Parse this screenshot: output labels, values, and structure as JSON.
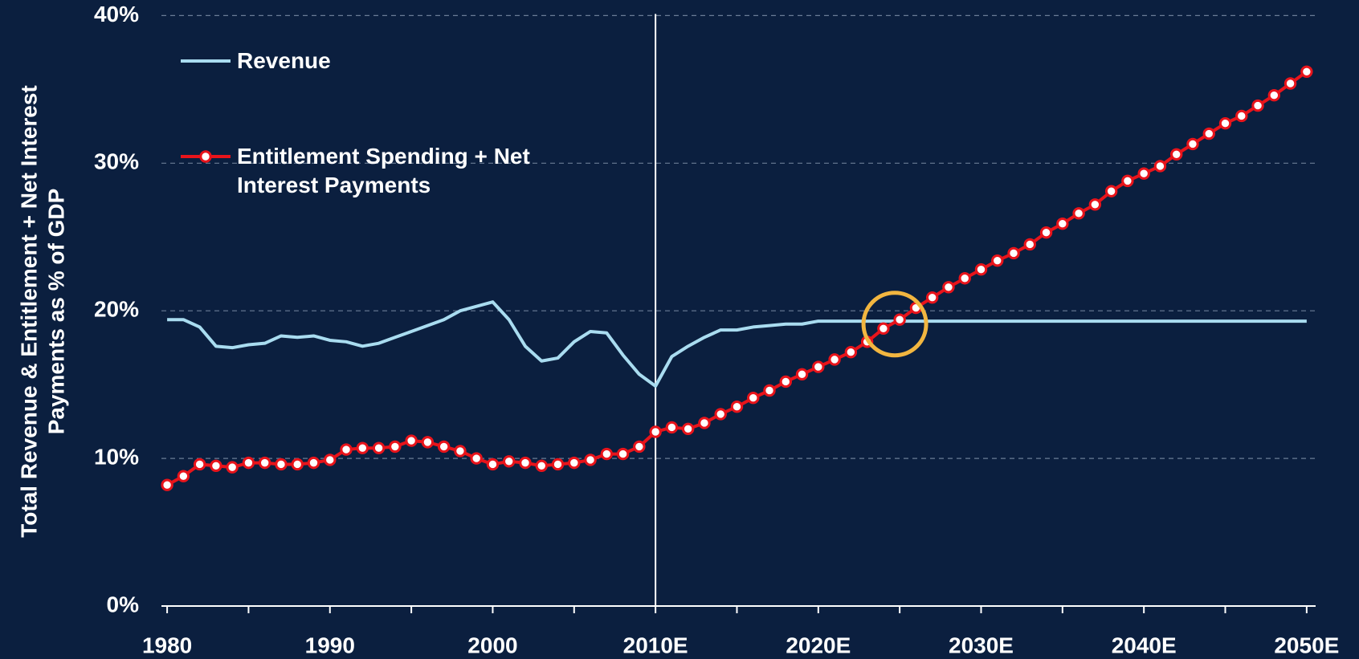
{
  "chart_data": {
    "type": "line",
    "y_label": [
      "Total Revenue & Entitlement + Net Interest",
      "Payments as % of GDP"
    ],
    "x": [
      1980,
      1981,
      1982,
      1983,
      1984,
      1985,
      1986,
      1987,
      1988,
      1989,
      1990,
      1991,
      1992,
      1993,
      1994,
      1995,
      1996,
      1997,
      1998,
      1999,
      2000,
      2001,
      2002,
      2003,
      2004,
      2005,
      2006,
      2007,
      2008,
      2009,
      2010,
      2011,
      2012,
      2013,
      2014,
      2015,
      2016,
      2017,
      2018,
      2019,
      2020,
      2021,
      2022,
      2023,
      2024,
      2025,
      2026,
      2027,
      2028,
      2029,
      2030,
      2031,
      2032,
      2033,
      2034,
      2035,
      2036,
      2037,
      2038,
      2039,
      2040,
      2041,
      2042,
      2043,
      2044,
      2045,
      2046,
      2047,
      2048,
      2049,
      2050
    ],
    "series": [
      {
        "name": "Revenue",
        "color": "#a9dcf0",
        "markers": false,
        "values": [
          19.4,
          19.4,
          18.9,
          17.6,
          17.5,
          17.7,
          17.8,
          18.3,
          18.2,
          18.3,
          18.0,
          17.9,
          17.6,
          17.8,
          18.2,
          18.6,
          19.0,
          19.4,
          20.0,
          20.3,
          20.6,
          19.4,
          17.6,
          16.6,
          16.8,
          17.9,
          18.6,
          18.5,
          17.0,
          15.7,
          14.9,
          16.9,
          17.6,
          18.2,
          18.7,
          18.7,
          18.9,
          19.0,
          19.1,
          19.1,
          19.3,
          19.3,
          19.3,
          19.3,
          19.3,
          19.3,
          19.3,
          19.3,
          19.3,
          19.3,
          19.3,
          19.3,
          19.3,
          19.3,
          19.3,
          19.3,
          19.3,
          19.3,
          19.3,
          19.3,
          19.3,
          19.3,
          19.3,
          19.3,
          19.3,
          19.3,
          19.3,
          19.3,
          19.3,
          19.3,
          19.3
        ]
      },
      {
        "name": "Entitlement Spending + Net Interest Payments",
        "color": "#e8141b",
        "markers": true,
        "values": [
          8.2,
          8.8,
          9.6,
          9.5,
          9.4,
          9.7,
          9.7,
          9.6,
          9.6,
          9.7,
          9.9,
          10.6,
          10.7,
          10.7,
          10.8,
          11.2,
          11.1,
          10.8,
          10.5,
          10.0,
          9.6,
          9.8,
          9.7,
          9.5,
          9.6,
          9.7,
          9.9,
          10.3,
          10.3,
          10.8,
          11.8,
          12.1,
          12.0,
          12.4,
          13.0,
          13.5,
          14.1,
          14.6,
          15.2,
          15.7,
          16.2,
          16.7,
          17.2,
          17.9,
          18.8,
          19.4,
          20.2,
          20.9,
          21.6,
          22.2,
          22.8,
          23.4,
          23.9,
          24.5,
          25.3,
          25.9,
          26.6,
          27.2,
          28.1,
          28.8,
          29.3,
          29.8,
          30.6,
          31.3,
          32.0,
          32.7,
          33.2,
          33.9,
          34.6,
          35.4,
          36.2
        ]
      }
    ],
    "xlim": [
      1979.65,
      2050.55
    ],
    "xticks": [
      1980,
      1990,
      2000,
      {
        "value": 2010,
        "label": "2010E"
      },
      {
        "value": 2020,
        "label": "2020E"
      },
      {
        "value": 2030,
        "label": "2030E"
      },
      {
        "value": 2040,
        "label": "2040E"
      },
      {
        "value": 2050,
        "label": "2050E"
      }
    ],
    "x_minor_ticks": [
      1985,
      1995,
      2005,
      2015,
      2025,
      2035,
      2045
    ],
    "ylim": [
      0,
      40
    ],
    "yticks": [
      {
        "value": 0,
        "label": "0%"
      },
      {
        "value": 10,
        "label": "10%"
      },
      {
        "value": 20,
        "label": "20%"
      },
      {
        "value": 30,
        "label": "30%"
      },
      {
        "value": 40,
        "label": "40%"
      }
    ],
    "grid": true,
    "divider_x": 2010,
    "highlight": {
      "x": 2024.7,
      "y": 19.1
    },
    "legend": "upper left"
  }
}
